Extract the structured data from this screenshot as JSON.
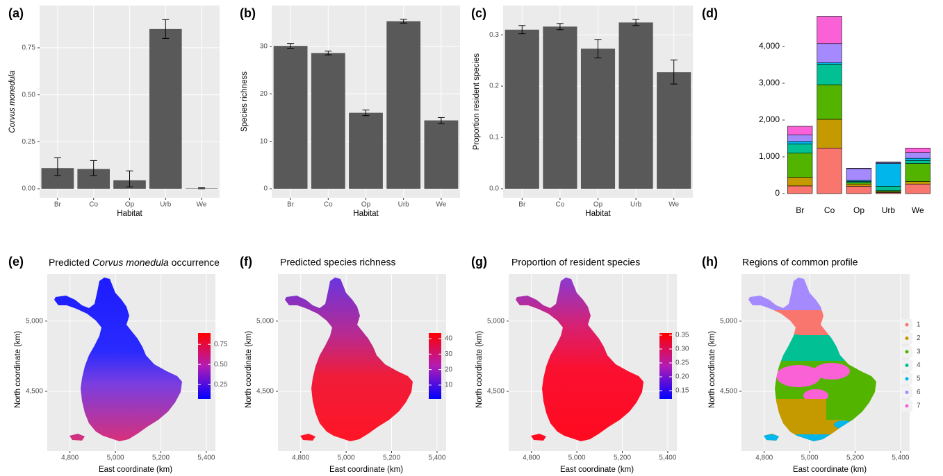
{
  "chart_data": [
    {
      "type": "bar",
      "panel": "(a)",
      "ylabel": "Corvus monedula",
      "xlabel": "Habitat",
      "categories": [
        "Br",
        "Co",
        "Op",
        "Urb",
        "We"
      ],
      "values": [
        0.11,
        0.105,
        0.045,
        0.85,
        0.002
      ],
      "error_lower": [
        0.07,
        0.07,
        0.01,
        0.8,
        0.0
      ],
      "error_upper": [
        0.165,
        0.15,
        0.095,
        0.9,
        0.005
      ],
      "ylim": [
        -0.048,
        0.975
      ],
      "yticks": [
        {
          "value": 0,
          "label": "0.00"
        },
        {
          "value": 0.25,
          "label": "0.25"
        },
        {
          "value": 0.5,
          "label": "0.50"
        },
        {
          "value": 0.75,
          "label": "0.75"
        }
      ],
      "color": "#595959",
      "grid": true
    },
    {
      "type": "bar",
      "panel": "(b)",
      "ylabel": "Species richness",
      "xlabel": "Habitat",
      "categories": [
        "Br",
        "Co",
        "Op",
        "Urb",
        "We"
      ],
      "values": [
        30.1,
        28.6,
        16.0,
        35.3,
        14.4
      ],
      "error_lower": [
        29.6,
        28.2,
        15.4,
        34.9,
        13.7
      ],
      "error_upper": [
        30.6,
        29.0,
        16.6,
        35.7,
        15.0
      ],
      "ylim": [
        -1.9,
        38.6
      ],
      "yticks": [
        0,
        10,
        20,
        30
      ],
      "color": "#595959",
      "grid": true
    },
    {
      "type": "bar",
      "panel": "(c)",
      "ylabel": "Proportion resident species",
      "xlabel": "Habitat",
      "categories": [
        "Br",
        "Co",
        "Op",
        "Urb",
        "We"
      ],
      "values": [
        0.31,
        0.316,
        0.273,
        0.324,
        0.227
      ],
      "error_lower": [
        0.302,
        0.31,
        0.255,
        0.318,
        0.204
      ],
      "error_upper": [
        0.318,
        0.322,
        0.291,
        0.33,
        0.251
      ],
      "ylim": [
        -0.0176,
        0.357
      ],
      "yticks": [
        {
          "value": 0,
          "label": "0.0"
        },
        0.1,
        0.2,
        0.3
      ],
      "color": "#595959",
      "grid": true
    },
    {
      "type": "stacked_bar",
      "panel": "(d)",
      "categories": [
        "Br",
        "Co",
        "Op",
        "Urb",
        "We"
      ],
      "series": [
        {
          "color": "#F8766D",
          "values": [
            210,
            1240,
            200,
            30,
            260
          ]
        },
        {
          "color": "#C49A00",
          "values": [
            230,
            780,
            60,
            20,
            70
          ]
        },
        {
          "color": "#53B400",
          "values": [
            660,
            940,
            40,
            30,
            490
          ]
        },
        {
          "color": "#00C094",
          "values": [
            250,
            560,
            30,
            120,
            80
          ]
        },
        {
          "color": "#00B6EB",
          "values": [
            70,
            40,
            30,
            620,
            60
          ]
        },
        {
          "color": "#A58AFF",
          "values": [
            180,
            520,
            320,
            30,
            160
          ]
        },
        {
          "color": "#FB61D7",
          "values": [
            230,
            740,
            10,
            10,
            120
          ]
        }
      ],
      "ylim": [
        -226,
        5000
      ],
      "yticks": [
        0,
        {
          "value": 1000,
          "label": "1,000"
        },
        {
          "value": 2000,
          "label": "2,000"
        },
        {
          "value": 3000,
          "label": "3,000"
        },
        {
          "value": 4000,
          "label": "4,000"
        }
      ],
      "grid": false
    },
    {
      "type": "map",
      "panel": "(e)",
      "title": [
        "Predicted ",
        "Corvus monedula",
        " occurrence"
      ],
      "xlabel": "East coordinate (km)",
      "ylabel": "North coordinate (km)",
      "xlim": [
        4700,
        5440
      ],
      "ylim": [
        4075,
        5335
      ],
      "xticks": [
        {
          "value": 4800,
          "label": "4,800"
        },
        {
          "value": 5000,
          "label": "5,000"
        },
        {
          "value": 5200,
          "label": "5,200"
        },
        {
          "value": 5400,
          "label": "5,400"
        }
      ],
      "yticks": [
        {
          "value": 4500,
          "label": "4,500"
        },
        {
          "value": 5000,
          "label": "5,000"
        }
      ],
      "colorbar": {
        "lim": [
          0.07,
          0.89
        ],
        "ticks": [
          {
            "value": 0.25,
            "label": "0.25"
          },
          {
            "value": 0.5,
            "label": "0.50"
          },
          {
            "value": 0.75,
            "label": "0.75"
          }
        ]
      },
      "grid": true
    },
    {
      "type": "map",
      "panel": "(f)",
      "title": "Predicted species richness",
      "xlabel": "East coordinate (km)",
      "ylabel": "North coordinate (km)",
      "xlim": [
        4700,
        5440
      ],
      "ylim": [
        4075,
        5335
      ],
      "xticks": [
        {
          "value": 4800,
          "label": "4,800"
        },
        {
          "value": 5000,
          "label": "5,000"
        },
        {
          "value": 5200,
          "label": "5,200"
        },
        {
          "value": 5400,
          "label": "5,400"
        }
      ],
      "yticks": [
        {
          "value": 4500,
          "label": "4,500"
        },
        {
          "value": 5000,
          "label": "5,000"
        }
      ],
      "colorbar": {
        "lim": [
          1,
          43.6
        ],
        "ticks": [
          10,
          20,
          30,
          40
        ]
      },
      "grid": true
    },
    {
      "type": "map",
      "panel": "(g)",
      "title": "Proportion of resident species",
      "xlabel": "East coordinate (km)",
      "ylabel": "North coordinate (km)",
      "xlim": [
        4700,
        5440
      ],
      "ylim": [
        4075,
        5335
      ],
      "xticks": [
        {
          "value": 4800,
          "label": "4,800"
        },
        {
          "value": 5000,
          "label": "5,000"
        },
        {
          "value": 5200,
          "label": "5,200"
        },
        {
          "value": 5400,
          "label": "5,400"
        }
      ],
      "yticks": [
        {
          "value": 4500,
          "label": "4,500"
        },
        {
          "value": 5000,
          "label": "5,000"
        }
      ],
      "colorbar": {
        "lim": [
          0.12,
          0.3575
        ],
        "ticks": [
          0.15,
          {
            "value": 0.2,
            "label": "0.20"
          },
          0.25,
          {
            "value": 0.3,
            "label": "0.30"
          },
          0.35
        ]
      },
      "grid": true
    },
    {
      "type": "map",
      "panel": "(h)",
      "title": "Regions of common profile",
      "xlabel": "East coordinate (km)",
      "ylabel": "North coordinate (km)",
      "xlim": [
        4700,
        5440
      ],
      "ylim": [
        4075,
        5335
      ],
      "xticks": [
        {
          "value": 4800,
          "label": "4,800"
        },
        {
          "value": 5000,
          "label": "5,000"
        },
        {
          "value": 5200,
          "label": "5,200"
        },
        {
          "value": 5400,
          "label": "5,400"
        }
      ],
      "yticks": [
        {
          "value": 4500,
          "label": "4,500"
        },
        {
          "value": 5000,
          "label": "5,000"
        }
      ],
      "legend": {
        "labels": [
          "1",
          "2",
          "3",
          "4",
          "5",
          "6",
          "7"
        ],
        "colors": [
          "#F8766D",
          "#C49A00",
          "#53B400",
          "#00C094",
          "#00B6EB",
          "#A58AFF",
          "#FB61D7"
        ]
      },
      "grid": true
    }
  ]
}
